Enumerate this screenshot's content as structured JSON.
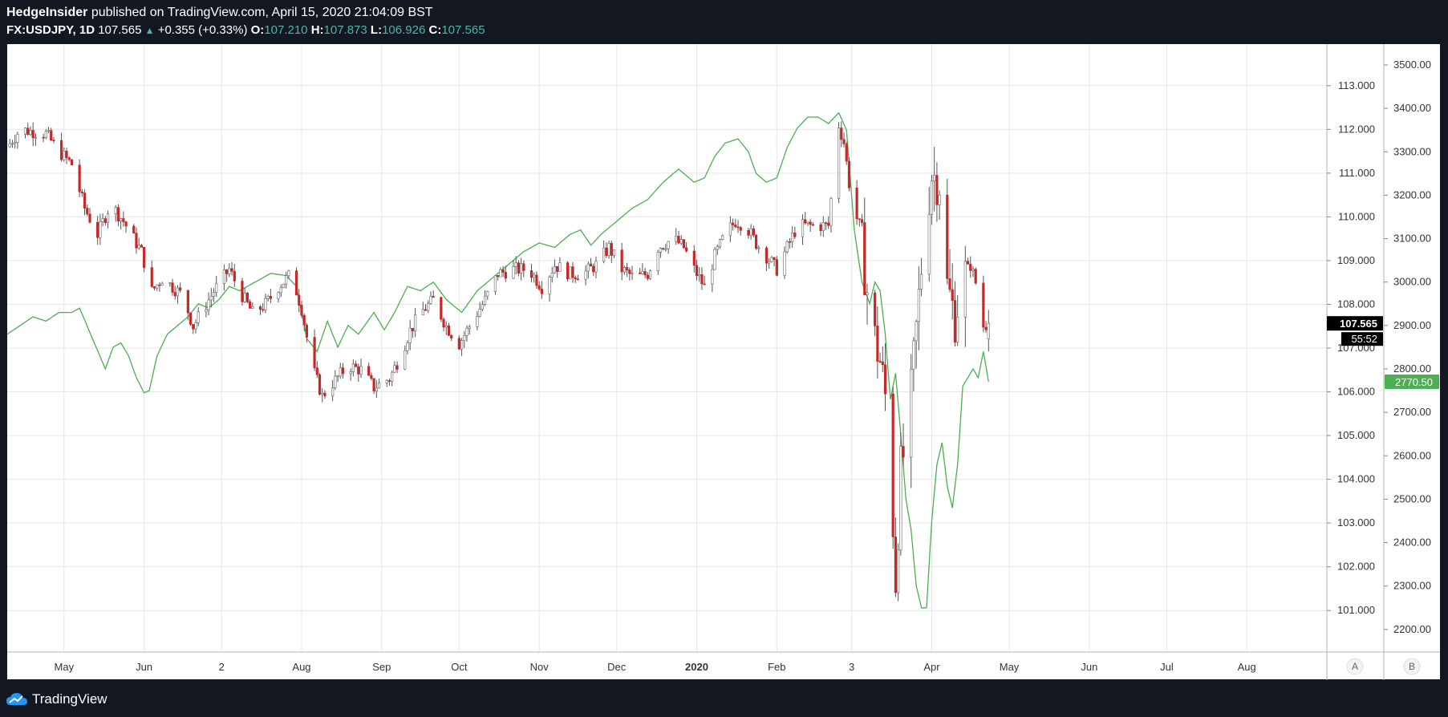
{
  "header": {
    "publisher": "HedgeInsider",
    "published_text": "published on TradingView.com, April 15, 2020 21:04:09 BST",
    "symbol": "FX:USDJPY, 1D",
    "last": "107.565",
    "change": "+0.355 (+0.33%)",
    "o_label": "O:",
    "o_value": "107.210",
    "h_label": "H:",
    "h_value": "107.873",
    "l_label": "L:",
    "l_value": "106.926",
    "c_label": "C:",
    "c_value": "107.565"
  },
  "footer": {
    "brand": "TradingView"
  },
  "colors": {
    "up": "#ffffff",
    "down": "#c62828",
    "wick": "#555555",
    "line": "#4caf50",
    "grid": "#e6e6e6"
  },
  "chart_data": {
    "type": "line",
    "left_axis": {
      "ticks": [
        101,
        102,
        103,
        104,
        105,
        106,
        107,
        108,
        109,
        110,
        111,
        112,
        113
      ],
      "ylim": [
        100.05,
        113.95
      ],
      "decimals": 3
    },
    "right_axis": {
      "ticks": [
        2200,
        2300,
        2400,
        2500,
        2600,
        2700,
        2800,
        2900,
        3000,
        3100,
        3200,
        3300,
        3400,
        3500
      ],
      "ylim": [
        2148,
        3548
      ],
      "decimals": 2
    },
    "x_labels": [
      {
        "day": 22,
        "label": "May",
        "bold": false
      },
      {
        "day": 53,
        "label": "Jun",
        "bold": false
      },
      {
        "day": 83,
        "label": "2",
        "bold": false
      },
      {
        "day": 114,
        "label": "Aug",
        "bold": false
      },
      {
        "day": 145,
        "label": "Sep",
        "bold": false
      },
      {
        "day": 175,
        "label": "Oct",
        "bold": false
      },
      {
        "day": 206,
        "label": "Nov",
        "bold": false
      },
      {
        "day": 236,
        "label": "Dec",
        "bold": false
      },
      {
        "day": 267,
        "label": "2020",
        "bold": true
      },
      {
        "day": 298,
        "label": "Feb",
        "bold": false
      },
      {
        "day": 327,
        "label": "3",
        "bold": false
      },
      {
        "day": 358,
        "label": "Apr",
        "bold": false
      },
      {
        "day": 388,
        "label": "May",
        "bold": false
      },
      {
        "day": 419,
        "label": "Jun",
        "bold": false
      },
      {
        "day": 449,
        "label": "Jul",
        "bold": false
      },
      {
        "day": 480,
        "label": "Aug",
        "bold": false
      }
    ],
    "x_range": [
      0,
      511
    ],
    "usdjpy_anchors": [
      [
        0,
        111.6
      ],
      [
        5,
        112.0
      ],
      [
        15,
        111.9
      ],
      [
        20,
        111.5
      ],
      [
        25,
        111.2
      ],
      [
        30,
        110.2
      ],
      [
        35,
        109.6
      ],
      [
        40,
        110.3
      ],
      [
        45,
        109.9
      ],
      [
        52,
        109.2
      ],
      [
        56,
        108.3
      ],
      [
        60,
        108.6
      ],
      [
        68,
        108.2
      ],
      [
        72,
        107.5
      ],
      [
        80,
        108.3
      ],
      [
        86,
        108.8
      ],
      [
        90,
        108.3
      ],
      [
        95,
        107.8
      ],
      [
        100,
        108.0
      ],
      [
        105,
        108.4
      ],
      [
        110,
        108.7
      ],
      [
        114,
        107.9
      ],
      [
        118,
        106.6
      ],
      [
        122,
        105.9
      ],
      [
        126,
        106.2
      ],
      [
        132,
        106.6
      ],
      [
        137,
        106.5
      ],
      [
        142,
        106.1
      ],
      [
        148,
        106.3
      ],
      [
        152,
        106.8
      ],
      [
        156,
        107.4
      ],
      [
        160,
        107.8
      ],
      [
        165,
        108.1
      ],
      [
        170,
        107.5
      ],
      [
        175,
        107.1
      ],
      [
        180,
        107.6
      ],
      [
        185,
        108.1
      ],
      [
        190,
        108.7
      ],
      [
        196,
        108.8
      ],
      [
        202,
        108.8
      ],
      [
        207,
        108.4
      ],
      [
        212,
        108.9
      ],
      [
        218,
        108.7
      ],
      [
        223,
        108.7
      ],
      [
        228,
        108.9
      ],
      [
        233,
        109.3
      ],
      [
        238,
        108.8
      ],
      [
        243,
        108.6
      ],
      [
        248,
        108.7
      ],
      [
        252,
        109.3
      ],
      [
        258,
        109.5
      ],
      [
        262,
        109.3
      ],
      [
        266,
        108.8
      ],
      [
        270,
        108.4
      ],
      [
        274,
        109.1
      ],
      [
        278,
        109.6
      ],
      [
        282,
        109.9
      ],
      [
        286,
        109.8
      ],
      [
        290,
        109.4
      ],
      [
        294,
        109.1
      ],
      [
        298,
        108.8
      ],
      [
        302,
        109.3
      ],
      [
        306,
        109.8
      ],
      [
        312,
        109.8
      ],
      [
        318,
        109.8
      ],
      [
        320,
        111.0
      ],
      [
        322,
        112.1
      ],
      [
        324,
        111.7
      ],
      [
        327,
        110.3
      ],
      [
        330,
        109.8
      ],
      [
        333,
        108.3
      ],
      [
        336,
        107.2
      ],
      [
        338,
        106.7
      ],
      [
        340,
        105.9
      ],
      [
        342,
        104.3
      ],
      [
        344,
        101.7
      ],
      [
        346,
        104.2
      ],
      [
        349,
        105.2
      ],
      [
        352,
        107.4
      ],
      [
        355,
        109.6
      ],
      [
        358,
        111.0
      ],
      [
        361,
        110.8
      ],
      [
        364,
        108.4
      ],
      [
        367,
        107.7
      ],
      [
        370,
        108.6
      ],
      [
        373,
        108.9
      ],
      [
        376,
        108.3
      ],
      [
        378,
        107.5
      ],
      [
        380,
        107.565
      ]
    ],
    "sp500_anchors": [
      [
        0,
        2880
      ],
      [
        5,
        2900
      ],
      [
        10,
        2920
      ],
      [
        15,
        2910
      ],
      [
        20,
        2930
      ],
      [
        25,
        2930
      ],
      [
        28,
        2940
      ],
      [
        33,
        2870
      ],
      [
        38,
        2800
      ],
      [
        41,
        2850
      ],
      [
        44,
        2860
      ],
      [
        47,
        2830
      ],
      [
        50,
        2780
      ],
      [
        53,
        2745
      ],
      [
        55,
        2750
      ],
      [
        58,
        2830
      ],
      [
        62,
        2880
      ],
      [
        66,
        2900
      ],
      [
        70,
        2920
      ],
      [
        74,
        2950
      ],
      [
        78,
        2940
      ],
      [
        82,
        2960
      ],
      [
        86,
        2990
      ],
      [
        90,
        2980
      ],
      [
        96,
        3000
      ],
      [
        102,
        3020
      ],
      [
        108,
        3015
      ],
      [
        112,
        2990
      ],
      [
        114,
        2930
      ],
      [
        116,
        2870
      ],
      [
        120,
        2840
      ],
      [
        124,
        2910
      ],
      [
        128,
        2850
      ],
      [
        132,
        2900
      ],
      [
        136,
        2880
      ],
      [
        142,
        2930
      ],
      [
        146,
        2890
      ],
      [
        150,
        2930
      ],
      [
        155,
        2990
      ],
      [
        160,
        2980
      ],
      [
        165,
        3000
      ],
      [
        170,
        2960
      ],
      [
        176,
        2930
      ],
      [
        182,
        2980
      ],
      [
        188,
        3010
      ],
      [
        194,
        3040
      ],
      [
        200,
        3070
      ],
      [
        206,
        3090
      ],
      [
        212,
        3080
      ],
      [
        218,
        3110
      ],
      [
        222,
        3120
      ],
      [
        226,
        3085
      ],
      [
        230,
        3110
      ],
      [
        236,
        3140
      ],
      [
        242,
        3170
      ],
      [
        248,
        3190
      ],
      [
        254,
        3230
      ],
      [
        260,
        3260
      ],
      [
        266,
        3230
      ],
      [
        270,
        3240
      ],
      [
        274,
        3290
      ],
      [
        278,
        3320
      ],
      [
        283,
        3330
      ],
      [
        287,
        3300
      ],
      [
        290,
        3250
      ],
      [
        294,
        3230
      ],
      [
        298,
        3240
      ],
      [
        302,
        3310
      ],
      [
        306,
        3355
      ],
      [
        310,
        3380
      ],
      [
        314,
        3380
      ],
      [
        318,
        3365
      ],
      [
        322,
        3390
      ],
      [
        325,
        3350
      ],
      [
        328,
        3120
      ],
      [
        331,
        3000
      ],
      [
        334,
        2950
      ],
      [
        336,
        3000
      ],
      [
        338,
        2980
      ],
      [
        340,
        2880
      ],
      [
        342,
        2730
      ],
      [
        344,
        2790
      ],
      [
        346,
        2650
      ],
      [
        348,
        2500
      ],
      [
        350,
        2430
      ],
      [
        352,
        2300
      ],
      [
        354,
        2250
      ],
      [
        356,
        2250
      ],
      [
        358,
        2450
      ],
      [
        360,
        2580
      ],
      [
        362,
        2630
      ],
      [
        364,
        2530
      ],
      [
        366,
        2480
      ],
      [
        368,
        2580
      ],
      [
        370,
        2760
      ],
      [
        372,
        2780
      ],
      [
        374,
        2800
      ],
      [
        376,
        2780
      ],
      [
        378,
        2840
      ],
      [
        380,
        2770.5
      ]
    ],
    "last_usdjpy_label": "107.565",
    "countdown_label": "55:52",
    "last_sp500_label": "2770.50",
    "axis_buttons": [
      "A",
      "B"
    ]
  }
}
